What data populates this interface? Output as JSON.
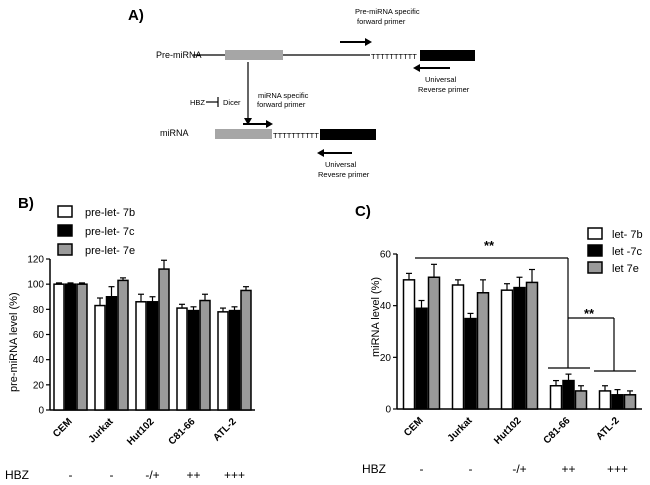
{
  "panels": {
    "a": "A)",
    "b": "B)",
    "c": "C)"
  },
  "schematic": {
    "pre_mirna_label": "Pre-miRNA",
    "mirna_label": "miRNA",
    "hbz_label": "HBZ",
    "dicer_label": "Dicer",
    "polyT": "TTTTTTTTTT",
    "pre_primer_line1": "Pre-miRNA specific",
    "pre_primer_line2": "forward primer",
    "mirna_primer_line1": "miRNA specific",
    "mirna_primer_line2": "forward primer",
    "universal_top_line1": "Universal",
    "universal_top_line2": "Reverse primer",
    "universal_bottom_line1": "Universal",
    "universal_bottom_line2": "Revesre primer"
  },
  "hbz_row": {
    "label": "HBZ",
    "values": [
      "-",
      "-",
      "-/+",
      "++",
      "+++"
    ]
  },
  "colors": {
    "white": "#ffffff",
    "black": "#000000",
    "gray": "#9a9a9a",
    "box_gray": "#a6a6a6"
  },
  "chart_data": [
    {
      "type": "bar",
      "panel": "B",
      "title": "",
      "xlabel": "",
      "ylabel": "pre-miRNA level (%)",
      "ylim": [
        0,
        120
      ],
      "yticks": [
        "0",
        "20",
        "40",
        "60",
        "80",
        "100",
        "120"
      ],
      "categories": [
        "CEM",
        "Jurkat",
        "Hut102",
        "C81-66",
        "ATL-2"
      ],
      "series": [
        {
          "name": "pre-let- 7b",
          "color": "white",
          "values": [
            100,
            83,
            86,
            81,
            78
          ],
          "errors": [
            1,
            6,
            6,
            3,
            3
          ]
        },
        {
          "name": "pre-let- 7c",
          "color": "black",
          "values": [
            100,
            90,
            86,
            79,
            79
          ],
          "errors": [
            1,
            8,
            4,
            3,
            3
          ]
        },
        {
          "name": "pre-let- 7e",
          "color": "gray",
          "values": [
            100,
            103,
            112,
            87,
            95
          ],
          "errors": [
            1,
            2,
            7,
            5,
            3
          ]
        }
      ],
      "legend": "top-left"
    },
    {
      "type": "bar",
      "panel": "C",
      "title": "",
      "xlabel": "",
      "ylabel": "miRNA level (%)",
      "ylim": [
        0,
        60
      ],
      "yticks": [
        "0",
        "20",
        "40",
        "60"
      ],
      "categories": [
        "CEM",
        "Jurkat",
        "Hut102",
        "C81-66",
        "ATL-2"
      ],
      "series": [
        {
          "name": "let- 7b",
          "color": "white",
          "values": [
            50,
            48,
            46,
            9,
            7
          ],
          "errors": [
            2.5,
            2,
            2.5,
            2,
            2
          ]
        },
        {
          "name": "let -7c",
          "color": "black",
          "values": [
            39,
            35,
            47,
            11,
            5.5
          ],
          "errors": [
            3,
            2,
            4,
            2.5,
            2
          ]
        },
        {
          "name": "let 7e",
          "color": "gray",
          "values": [
            51,
            45,
            49,
            7,
            5.5
          ],
          "errors": [
            5,
            5,
            5,
            2,
            1.5
          ]
        }
      ],
      "legend": "top-right",
      "significance": [
        "**",
        "**"
      ]
    }
  ]
}
